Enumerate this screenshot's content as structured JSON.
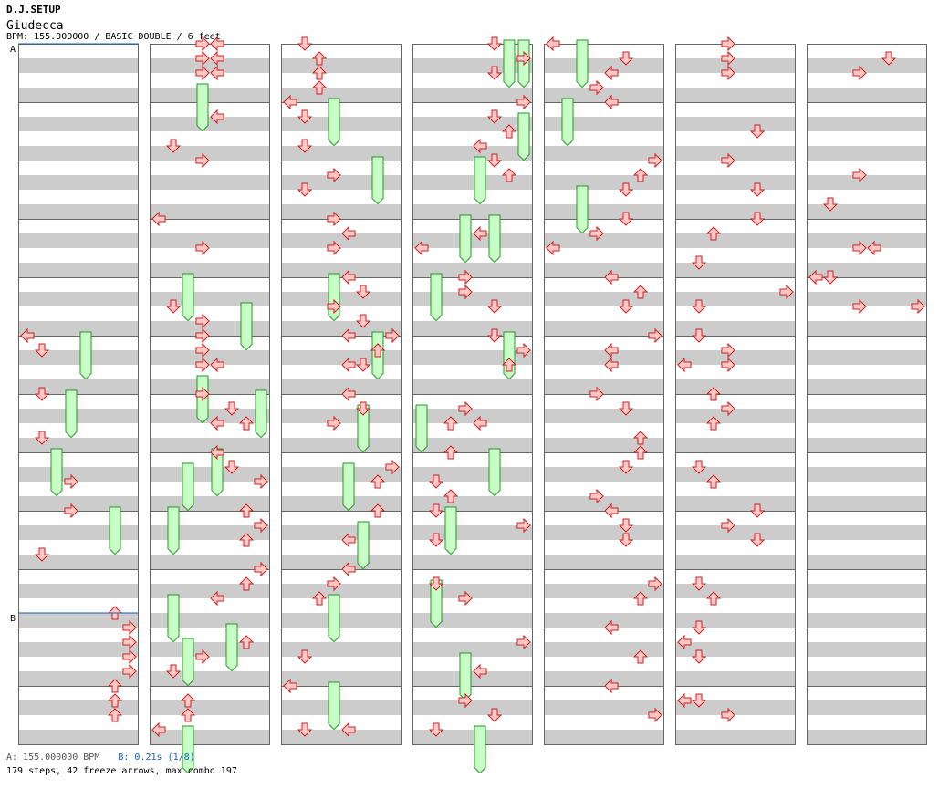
{
  "header": {
    "title": "D.J.SETUP",
    "song": "Giudecca",
    "info": "BPM: 155.000000 / BASIC DOUBLE / 6 feet"
  },
  "markers": {
    "a": "A",
    "b": "B"
  },
  "footer": {
    "bpm_note": "A: 155.000000 BPM",
    "b_note": "B: 0.21s (1/8)",
    "stats": "179 steps, 42 freeze arrows, max combo 197"
  },
  "colors": {
    "stripe": "#cccccc",
    "border": "#666666",
    "marker_line": "#1a5fb4",
    "arrow_fill": "#ffc8c8",
    "arrow_stroke": "#cc2222",
    "freeze_fill": "#c8ffc8",
    "freeze_stroke": "#229922"
  },
  "chart_data": {
    "type": "step-chart",
    "columns": 7,
    "measures_per_column": 12,
    "lanes": [
      "left",
      "down",
      "up",
      "right",
      "left",
      "down",
      "up",
      "right"
    ],
    "beats_per_measure": 4,
    "markers": [
      {
        "label": "A",
        "measure": 0,
        "beat": 0
      },
      {
        "label": "B",
        "measure": 9,
        "beat": 3
      }
    ],
    "arrows": [
      [
        5,
        0,
        0
      ],
      [
        5,
        1,
        1
      ],
      [
        6,
        0,
        1
      ],
      [
        6,
        3,
        1
      ],
      [
        7,
        2,
        3
      ],
      [
        8,
        0,
        3
      ],
      [
        8,
        3,
        1
      ],
      [
        9,
        3,
        6
      ],
      [
        10,
        0,
        7
      ],
      [
        10,
        1,
        7
      ],
      [
        10,
        2,
        7
      ],
      [
        10,
        3,
        7
      ],
      [
        11,
        0,
        6
      ],
      [
        11,
        1,
        6
      ],
      [
        11,
        2,
        6
      ],
      [
        12,
        0,
        4
      ],
      [
        12,
        1,
        4
      ],
      [
        12,
        2,
        4
      ],
      [
        12,
        0,
        3
      ],
      [
        12,
        1,
        3
      ],
      [
        12,
        2,
        3
      ],
      [
        13,
        1,
        4
      ],
      [
        13,
        3,
        1
      ],
      [
        14,
        0,
        3
      ],
      [
        15,
        2,
        3
      ],
      [
        15,
        0,
        0
      ],
      [
        16,
        2,
        1
      ],
      [
        16,
        3,
        3
      ],
      [
        17,
        0,
        3
      ],
      [
        17,
        1,
        3
      ],
      [
        17,
        2,
        3
      ],
      [
        17,
        2,
        4
      ],
      [
        18,
        0,
        3
      ],
      [
        18,
        1,
        5
      ],
      [
        18,
        2,
        6
      ],
      [
        18,
        2,
        4
      ],
      [
        19,
        0,
        4
      ],
      [
        19,
        1,
        5
      ],
      [
        19,
        2,
        7
      ],
      [
        20,
        0,
        6
      ],
      [
        20,
        1,
        7
      ],
      [
        20,
        2,
        6
      ],
      [
        21,
        0,
        7
      ],
      [
        21,
        1,
        6
      ],
      [
        21,
        2,
        4
      ],
      [
        22,
        1,
        6
      ],
      [
        22,
        2,
        3
      ],
      [
        22,
        3,
        1
      ],
      [
        23,
        1,
        2
      ],
      [
        23,
        2,
        2
      ],
      [
        23,
        3,
        0
      ],
      [
        24,
        0,
        1
      ],
      [
        24,
        1,
        2
      ],
      [
        24,
        2,
        2
      ],
      [
        24,
        3,
        2
      ],
      [
        25,
        0,
        0
      ],
      [
        25,
        1,
        1
      ],
      [
        25,
        3,
        1
      ],
      [
        26,
        1,
        3
      ],
      [
        26,
        2,
        1
      ],
      [
        27,
        0,
        3
      ],
      [
        27,
        1,
        4
      ],
      [
        27,
        2,
        3
      ],
      [
        28,
        0,
        4
      ],
      [
        28,
        1,
        5
      ],
      [
        28,
        2,
        3
      ],
      [
        28,
        3,
        5
      ],
      [
        29,
        0,
        4
      ],
      [
        29,
        1,
        6
      ],
      [
        29,
        2,
        5
      ],
      [
        29,
        0,
        7
      ],
      [
        29,
        1,
        6
      ],
      [
        29,
        2,
        4
      ],
      [
        30,
        0,
        4
      ],
      [
        30,
        1,
        5
      ],
      [
        30,
        2,
        3
      ],
      [
        31,
        1,
        7
      ],
      [
        31,
        2,
        6
      ],
      [
        32,
        0,
        6
      ],
      [
        32,
        2,
        4
      ],
      [
        33,
        0,
        4
      ],
      [
        33,
        1,
        3
      ],
      [
        33,
        2,
        2
      ],
      [
        34,
        2,
        1
      ],
      [
        35,
        0,
        0
      ],
      [
        35,
        3,
        1
      ],
      [
        35,
        3,
        4
      ],
      [
        36,
        0,
        5
      ],
      [
        36,
        1,
        7
      ],
      [
        36,
        2,
        5
      ],
      [
        37,
        0,
        7
      ],
      [
        37,
        1,
        5
      ],
      [
        37,
        2,
        6
      ],
      [
        37,
        3,
        4
      ],
      [
        38,
        0,
        5
      ],
      [
        38,
        1,
        6
      ],
      [
        39,
        1,
        4
      ],
      [
        39,
        2,
        0
      ],
      [
        40,
        0,
        3
      ],
      [
        40,
        1,
        3
      ],
      [
        40,
        2,
        5
      ],
      [
        41,
        0,
        5
      ],
      [
        41,
        1,
        7
      ],
      [
        41,
        2,
        6
      ],
      [
        42,
        1,
        3
      ],
      [
        42,
        2,
        2
      ],
      [
        42,
        2,
        4
      ],
      [
        43,
        0,
        2
      ],
      [
        43,
        2,
        1
      ],
      [
        43,
        3,
        2
      ],
      [
        44,
        0,
        1
      ],
      [
        44,
        1,
        7
      ],
      [
        44,
        2,
        1
      ],
      [
        45,
        1,
        1
      ],
      [
        45,
        2,
        3
      ],
      [
        46,
        1,
        7
      ],
      [
        46,
        3,
        4
      ],
      [
        47,
        1,
        3
      ],
      [
        47,
        2,
        5
      ],
      [
        47,
        3,
        1
      ],
      [
        48,
        0,
        0
      ],
      [
        48,
        1,
        5
      ],
      [
        48,
        2,
        4
      ],
      [
        48,
        3,
        3
      ],
      [
        49,
        0,
        4
      ],
      [
        50,
        0,
        7
      ],
      [
        50,
        1,
        6
      ],
      [
        50,
        2,
        5
      ],
      [
        51,
        0,
        5
      ],
      [
        51,
        1,
        3
      ],
      [
        51,
        2,
        0
      ],
      [
        52,
        0,
        4
      ],
      [
        52,
        1,
        6
      ],
      [
        52,
        2,
        5
      ],
      [
        53,
        0,
        7
      ],
      [
        53,
        1,
        4
      ],
      [
        53,
        2,
        4
      ],
      [
        54,
        0,
        3
      ],
      [
        54,
        1,
        5
      ],
      [
        54,
        3,
        6
      ],
      [
        55,
        0,
        6
      ],
      [
        55,
        1,
        5
      ],
      [
        55,
        3,
        3
      ],
      [
        56,
        0,
        4
      ],
      [
        56,
        1,
        5
      ],
      [
        56,
        2,
        5
      ],
      [
        57,
        1,
        7
      ],
      [
        57,
        2,
        6
      ],
      [
        58,
        0,
        4
      ],
      [
        58,
        2,
        6
      ],
      [
        59,
        0,
        4
      ],
      [
        59,
        2,
        7
      ],
      [
        60,
        0,
        3
      ],
      [
        60,
        1,
        3
      ],
      [
        60,
        2,
        3
      ],
      [
        61,
        2,
        5
      ],
      [
        62,
        0,
        3
      ],
      [
        62,
        2,
        5
      ],
      [
        63,
        0,
        5
      ],
      [
        63,
        1,
        2
      ],
      [
        63,
        3,
        1
      ],
      [
        64,
        1,
        7
      ],
      [
        64,
        2,
        1
      ],
      [
        65,
        0,
        1
      ],
      [
        65,
        1,
        3
      ],
      [
        65,
        2,
        0
      ],
      [
        65,
        2,
        3
      ],
      [
        66,
        0,
        2
      ],
      [
        66,
        1,
        3
      ],
      [
        66,
        2,
        2
      ],
      [
        67,
        1,
        1
      ],
      [
        67,
        2,
        2
      ],
      [
        68,
        0,
        5
      ],
      [
        68,
        1,
        3
      ],
      [
        68,
        2,
        5
      ],
      [
        69,
        1,
        1
      ],
      [
        69,
        2,
        2
      ],
      [
        70,
        0,
        1
      ],
      [
        70,
        1,
        0
      ],
      [
        70,
        2,
        1
      ],
      [
        71,
        1,
        0
      ],
      [
        71,
        1,
        1
      ],
      [
        71,
        2,
        3
      ],
      [
        72,
        1,
        5
      ],
      [
        72,
        2,
        3
      ],
      [
        74,
        1,
        3
      ],
      [
        74,
        3,
        1
      ],
      [
        75,
        2,
        3
      ],
      [
        75,
        2,
        4
      ],
      [
        76,
        0,
        0
      ],
      [
        76,
        0,
        1
      ],
      [
        76,
        2,
        3
      ],
      [
        76,
        2,
        7
      ]
    ],
    "freezes": [
      [
        5,
        0,
        4
      ],
      [
        6,
        0,
        3
      ],
      [
        7,
        0,
        2
      ],
      [
        8,
        0,
        6
      ],
      [
        12,
        3,
        3
      ],
      [
        16,
        0,
        2
      ],
      [
        16,
        2,
        6
      ],
      [
        17,
        3,
        3
      ],
      [
        18,
        0,
        7
      ],
      [
        19,
        0,
        4
      ],
      [
        19,
        1,
        2
      ],
      [
        20,
        0,
        1
      ],
      [
        21,
        2,
        1
      ],
      [
        22,
        0,
        5
      ],
      [
        22,
        1,
        2
      ],
      [
        23,
        3,
        2
      ],
      [
        25,
        0,
        3
      ],
      [
        26,
        0,
        6
      ],
      [
        28,
        0,
        3
      ],
      [
        29,
        0,
        6
      ],
      [
        30,
        1,
        5
      ],
      [
        31,
        1,
        4
      ],
      [
        32,
        1,
        5
      ],
      [
        33,
        2,
        3
      ],
      [
        35,
        0,
        3
      ],
      [
        36,
        0,
        7
      ],
      [
        36,
        0,
        6
      ],
      [
        37,
        1,
        7
      ],
      [
        38,
        0,
        4
      ],
      [
        39,
        0,
        3
      ],
      [
        39,
        0,
        5
      ],
      [
        40,
        0,
        1
      ],
      [
        41,
        0,
        6
      ],
      [
        42,
        1,
        0
      ],
      [
        43,
        0,
        5
      ],
      [
        44,
        0,
        2
      ],
      [
        45,
        1,
        1
      ],
      [
        46,
        2,
        3
      ],
      [
        47,
        3,
        4
      ],
      [
        48,
        0,
        2
      ],
      [
        49,
        0,
        1
      ],
      [
        50,
        2,
        2
      ]
    ]
  }
}
